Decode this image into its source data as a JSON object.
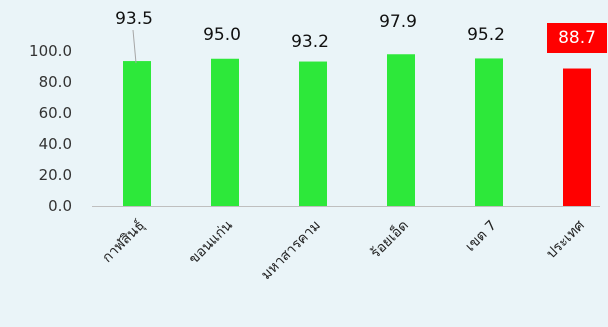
{
  "chart_data": {
    "type": "bar",
    "title": "",
    "xlabel": "",
    "ylabel": "",
    "categories": [
      "กาฬสินธุ์",
      "ขอนแก่น",
      "มหาสารคาม",
      "ร้อยเอ็ด",
      "เขต 7",
      "ประเทศ"
    ],
    "values": [
      93.5,
      95.0,
      93.2,
      97.9,
      95.2,
      88.7
    ],
    "value_labels": [
      "93.5",
      "95.0",
      "93.2",
      "97.9",
      "95.2",
      "88.7"
    ],
    "yticks": [
      "0.0",
      "20.0",
      "40.0",
      "60.0",
      "80.0",
      "100.0"
    ],
    "ylim": [
      0,
      100
    ],
    "grid": false,
    "legend": "none",
    "colors": {
      "bar": "#2de83a",
      "highlight_bar": "#ff0000",
      "highlight_label_bg": "#ff0000",
      "background": "#eaf4f8",
      "axis": "#bfbfbf"
    },
    "highlight_index": 5
  }
}
